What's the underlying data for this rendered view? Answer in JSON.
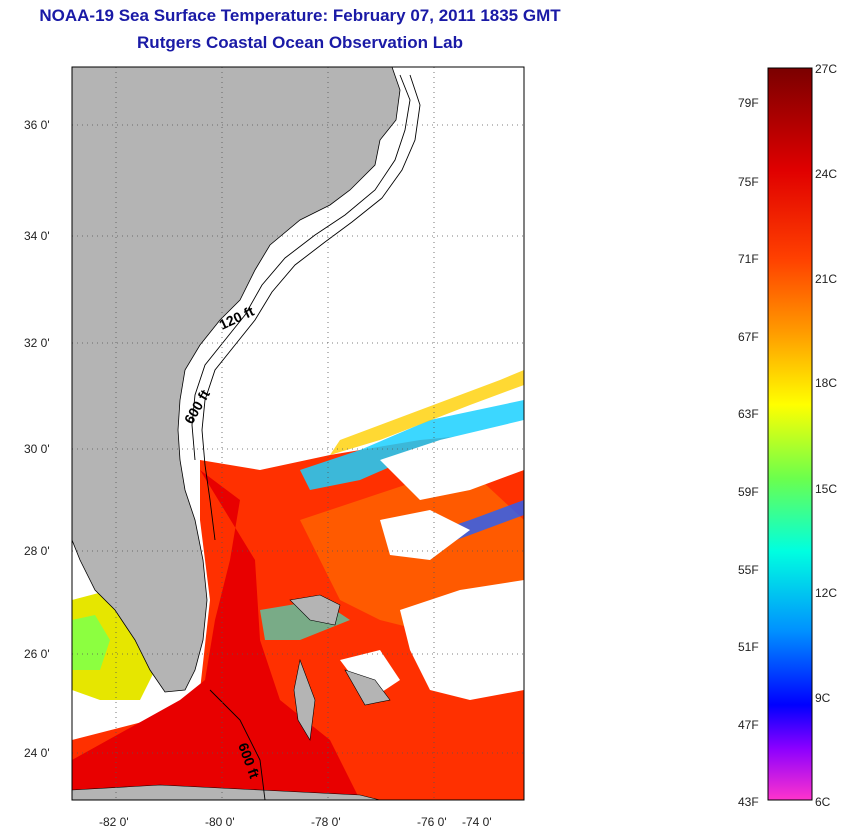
{
  "title": "NOAA-19 Sea Surface Temperature:  February 07, 2011 1835 GMT",
  "subtitle": "Rutgers Coastal Ocean Observation Lab",
  "map": {
    "lat_labels": [
      "36 0'",
      "34 0'",
      "32 0'",
      "30 0'",
      "28 0'",
      "26 0'",
      "24 0'"
    ],
    "lon_labels": [
      "-82 0'",
      "-80 0'",
      "-78 0'",
      "-76 0'",
      "-74 0'"
    ],
    "contour_labels": [
      "120 ft",
      "600 ft",
      "600 ft"
    ],
    "land_color": "#b4b4b4",
    "cloud_color": "#ffffff"
  },
  "colorbar": {
    "fahrenheit_labels": [
      "79F",
      "75F",
      "71F",
      "67F",
      "63F",
      "59F",
      "55F",
      "51F",
      "47F",
      "43F"
    ],
    "celsius_labels": [
      "27C",
      "24C",
      "21C",
      "18C",
      "15C",
      "12C",
      "9C",
      "6C"
    ],
    "colors": [
      "#7a0000",
      "#e00000",
      "#ff4000",
      "#ff9a00",
      "#ffff00",
      "#6cff4c",
      "#00ffe0",
      "#0090ff",
      "#0000ff",
      "#8c00ff",
      "#ff33cc"
    ]
  }
}
